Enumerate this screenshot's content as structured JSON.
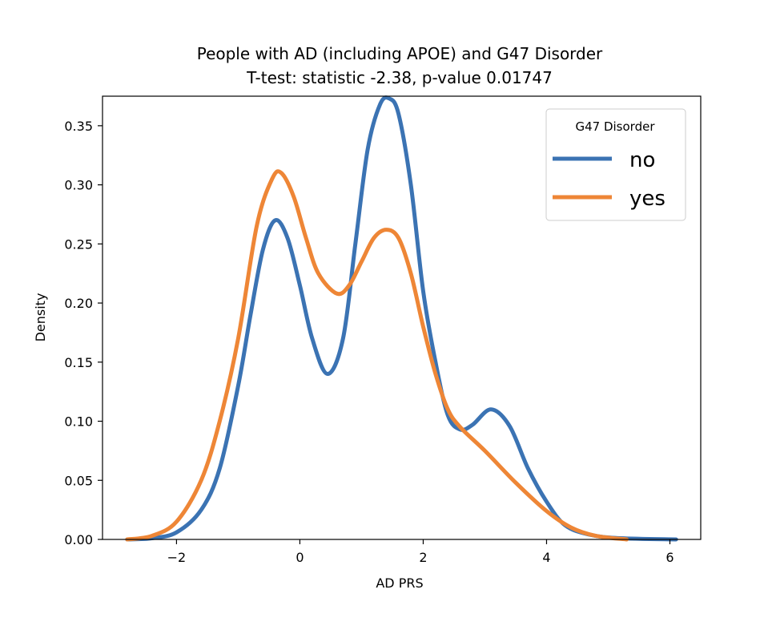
{
  "chart_data": {
    "type": "line",
    "title": "People with AD (including APOE) and G47 Disorder",
    "subtitle": "T-test: statistic -2.38, p-value 0.01747",
    "xlabel": "AD PRS",
    "ylabel": "Density",
    "xlim": [
      -3.2,
      6.5
    ],
    "ylim": [
      0,
      0.375
    ],
    "x_ticks": [
      -2,
      0,
      2,
      4,
      6
    ],
    "x_tick_labels": [
      "−2",
      "0",
      "2",
      "4",
      "6"
    ],
    "y_ticks": [
      0.0,
      0.05,
      0.1,
      0.15,
      0.2,
      0.25,
      0.3,
      0.35
    ],
    "y_tick_labels": [
      "0.00",
      "0.05",
      "0.10",
      "0.15",
      "0.20",
      "0.25",
      "0.30",
      "0.35"
    ],
    "grid": false,
    "legend": {
      "title": "G47 Disorder",
      "placement": "top-right"
    },
    "series": [
      {
        "name": "no",
        "color": "#3b73b3",
        "points": [
          [
            -2.8,
            0.0
          ],
          [
            -2.4,
            0.001
          ],
          [
            -2.0,
            0.006
          ],
          [
            -1.6,
            0.025
          ],
          [
            -1.3,
            0.06
          ],
          [
            -1.0,
            0.13
          ],
          [
            -0.8,
            0.19
          ],
          [
            -0.6,
            0.245
          ],
          [
            -0.4,
            0.27
          ],
          [
            -0.2,
            0.255
          ],
          [
            0.0,
            0.215
          ],
          [
            0.2,
            0.17
          ],
          [
            0.45,
            0.14
          ],
          [
            0.7,
            0.17
          ],
          [
            0.9,
            0.25
          ],
          [
            1.1,
            0.33
          ],
          [
            1.3,
            0.368
          ],
          [
            1.45,
            0.373
          ],
          [
            1.6,
            0.36
          ],
          [
            1.8,
            0.3
          ],
          [
            2.0,
            0.21
          ],
          [
            2.2,
            0.15
          ],
          [
            2.4,
            0.105
          ],
          [
            2.6,
            0.093
          ],
          [
            2.8,
            0.097
          ],
          [
            3.1,
            0.11
          ],
          [
            3.4,
            0.096
          ],
          [
            3.7,
            0.06
          ],
          [
            4.0,
            0.032
          ],
          [
            4.3,
            0.012
          ],
          [
            4.7,
            0.004
          ],
          [
            5.2,
            0.001
          ],
          [
            6.1,
            0.0
          ]
        ]
      },
      {
        "name": "yes",
        "color": "#ee8636",
        "points": [
          [
            -2.8,
            0.0
          ],
          [
            -2.4,
            0.003
          ],
          [
            -2.0,
            0.015
          ],
          [
            -1.6,
            0.05
          ],
          [
            -1.3,
            0.1
          ],
          [
            -1.0,
            0.17
          ],
          [
            -0.7,
            0.265
          ],
          [
            -0.45,
            0.305
          ],
          [
            -0.3,
            0.31
          ],
          [
            -0.1,
            0.29
          ],
          [
            0.1,
            0.255
          ],
          [
            0.3,
            0.225
          ],
          [
            0.6,
            0.208
          ],
          [
            0.8,
            0.215
          ],
          [
            1.0,
            0.235
          ],
          [
            1.2,
            0.255
          ],
          [
            1.4,
            0.262
          ],
          [
            1.6,
            0.255
          ],
          [
            1.8,
            0.225
          ],
          [
            2.0,
            0.18
          ],
          [
            2.2,
            0.14
          ],
          [
            2.4,
            0.11
          ],
          [
            2.6,
            0.095
          ],
          [
            3.0,
            0.075
          ],
          [
            3.5,
            0.048
          ],
          [
            4.0,
            0.024
          ],
          [
            4.4,
            0.01
          ],
          [
            4.8,
            0.003
          ],
          [
            5.3,
            0.0
          ]
        ]
      }
    ]
  }
}
